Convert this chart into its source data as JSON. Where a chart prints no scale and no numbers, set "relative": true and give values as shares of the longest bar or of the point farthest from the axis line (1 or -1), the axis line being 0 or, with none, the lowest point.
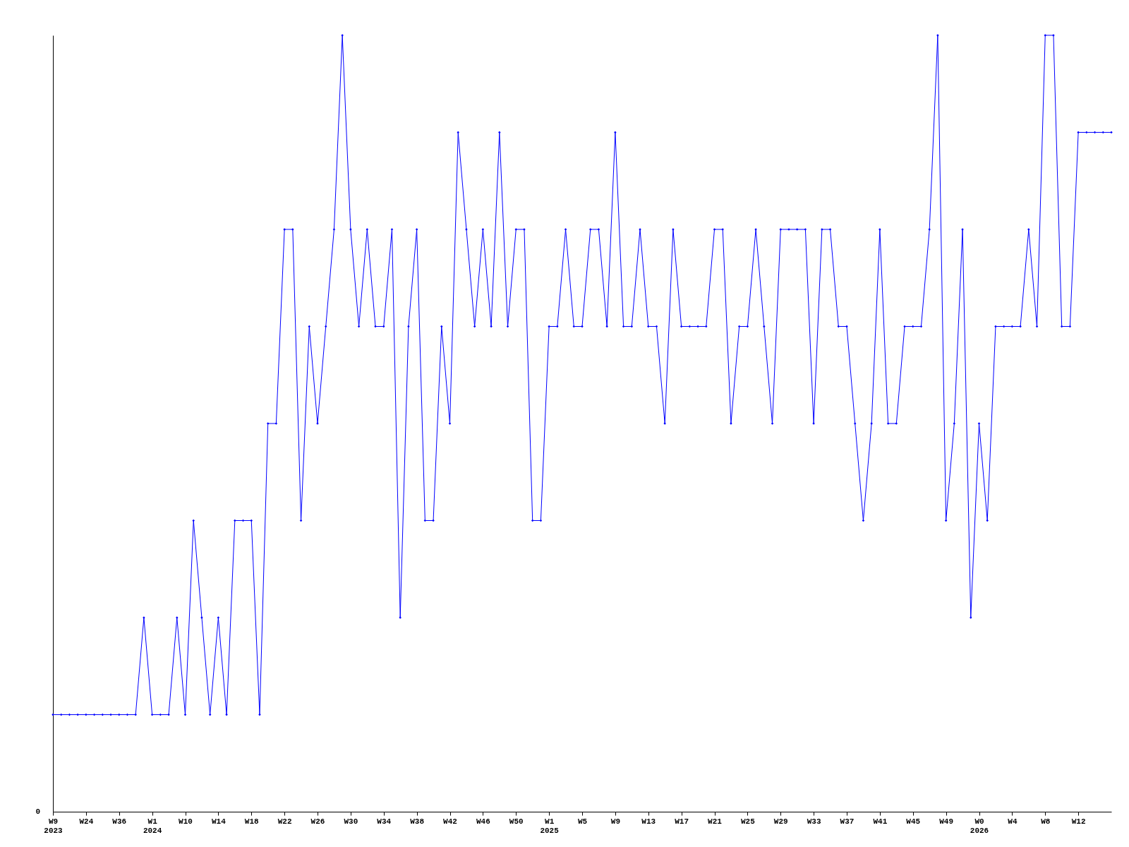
{
  "chart_data": {
    "type": "line",
    "relative": true,
    "marker": "diamond",
    "line_style": "solid",
    "grid": false,
    "annotations": [
      "0"
    ],
    "categories": [
      "W9\n2023",
      null,
      null,
      null,
      "W24",
      null,
      null,
      null,
      "W36",
      null,
      null,
      null,
      "W1\n2024",
      null,
      null,
      null,
      "W10",
      null,
      null,
      null,
      "W14",
      null,
      null,
      null,
      "W18",
      null,
      null,
      null,
      "W22",
      null,
      null,
      null,
      "W26",
      null,
      null,
      null,
      "W30",
      null,
      null,
      null,
      "W34",
      null,
      null,
      null,
      "W38",
      null,
      null,
      null,
      "W42",
      null,
      null,
      null,
      "W46",
      null,
      null,
      null,
      "W50",
      null,
      null,
      null,
      "W1\n2025",
      null,
      null,
      null,
      "W5",
      null,
      null,
      null,
      "W9",
      null,
      null,
      null,
      "W13",
      null,
      null,
      null,
      "W17",
      null,
      null,
      null,
      "W21",
      null,
      null,
      null,
      "W25",
      null,
      null,
      null,
      "W29",
      null,
      null,
      null,
      "W33",
      null,
      null,
      null,
      "W37",
      null,
      null,
      null,
      "W41",
      null,
      null,
      null,
      "W45",
      null,
      null,
      null,
      "W49",
      null,
      null,
      null,
      "W0\n2026",
      null,
      null,
      null,
      "W4",
      null,
      null,
      null,
      "W8",
      null,
      null,
      null,
      "W12",
      null,
      null,
      null,
      null
    ],
    "series": [
      {
        "color": "#0000ff",
        "values": [
          0.125,
          0.125,
          0.125,
          0.125,
          0.125,
          0.125,
          0.125,
          0.125,
          0.125,
          0.125,
          0.125,
          0.25,
          0.125,
          0.125,
          0.125,
          0.25,
          0.125,
          0.375,
          0.25,
          0.125,
          0.25,
          0.125,
          0.375,
          0.375,
          0.375,
          0.125,
          0.5,
          0.5,
          0.75,
          0.75,
          0.375,
          0.625,
          0.5,
          0.625,
          0.75,
          1,
          0.75,
          0.625,
          0.75,
          0.625,
          0.625,
          0.75,
          0.25,
          0.625,
          0.75,
          0.375,
          0.375,
          0.625,
          0.5,
          0.875,
          0.75,
          0.625,
          0.75,
          0.625,
          0.875,
          0.625,
          0.75,
          0.75,
          0.375,
          0.375,
          0.625,
          0.625,
          0.75,
          0.625,
          0.625,
          0.75,
          0.75,
          0.625,
          0.875,
          0.625,
          0.625,
          0.75,
          0.625,
          0.625,
          0.5,
          0.75,
          0.625,
          0.625,
          0.625,
          0.625,
          0.75,
          0.75,
          0.5,
          0.625,
          0.625,
          0.75,
          0.625,
          0.5,
          0.75,
          0.75,
          0.75,
          0.75,
          0.5,
          0.75,
          0.75,
          0.625,
          0.625,
          0.5,
          0.375,
          0.5,
          0.75,
          0.5,
          0.5,
          0.625,
          0.625,
          0.625,
          0.75,
          1,
          0.375,
          0.5,
          0.75,
          0.25,
          0.5,
          0.375,
          0.625,
          0.625,
          0.625,
          0.625,
          0.75,
          0.625,
          1,
          1,
          0.625,
          0.625,
          0.875,
          0.875,
          0.875,
          0.875,
          0.875
        ]
      }
    ]
  }
}
